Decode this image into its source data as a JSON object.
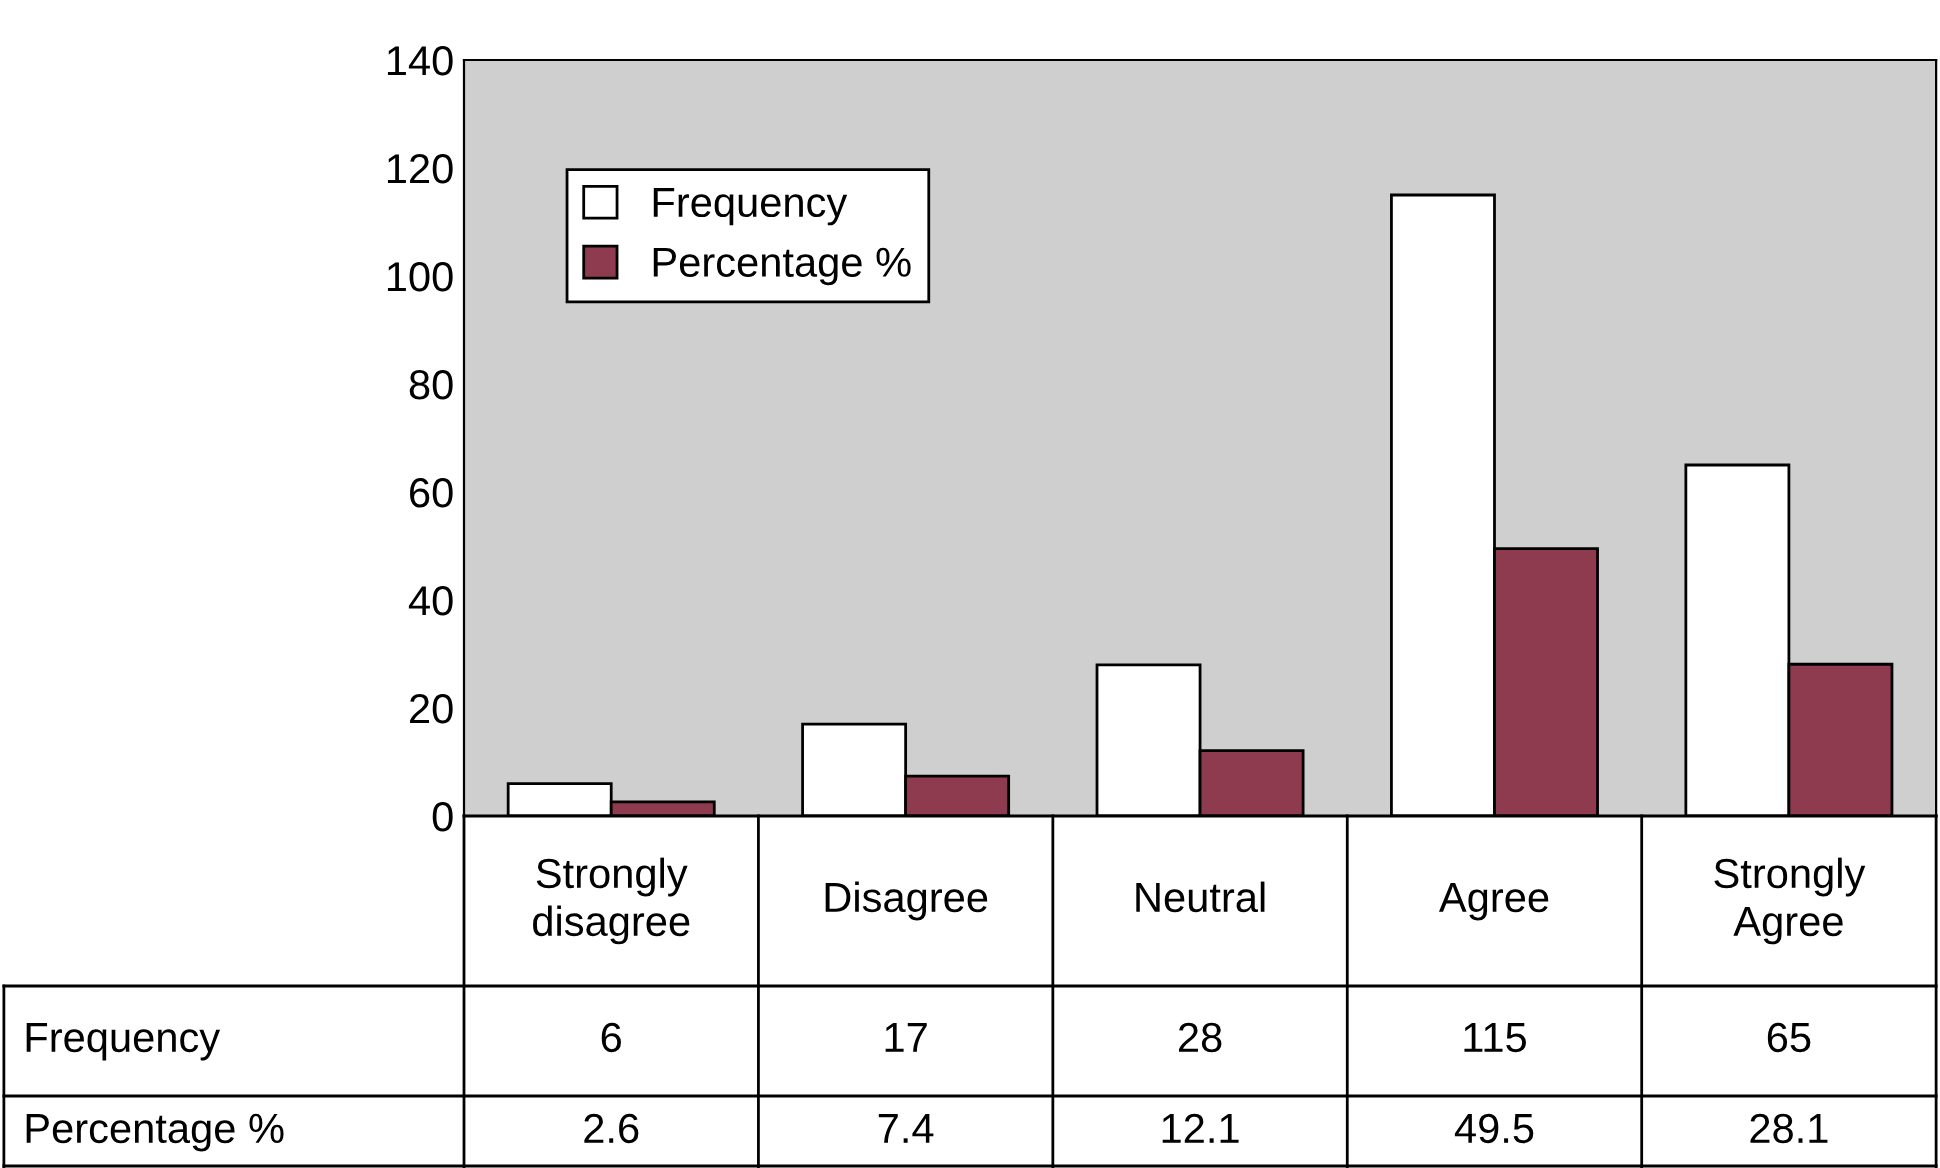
{
  "chart_data": {
    "type": "bar",
    "categories": [
      "Strongly\ndisagree",
      "Disagree",
      "Neutral",
      "Agree",
      "Strongly\nAgree"
    ],
    "series": [
      {
        "name": "Frequency",
        "color": "#ffffff",
        "values": [
          6,
          17,
          28,
          115,
          65
        ]
      },
      {
        "name": "Percentage %",
        "color": "#8e3a4f",
        "values": [
          2.6,
          7.4,
          12.1,
          49.5,
          28.1
        ]
      }
    ],
    "ylim": [
      0,
      140
    ],
    "yticks": [
      0,
      20,
      40,
      60,
      80,
      100,
      120,
      140
    ],
    "grid": false,
    "legend": "top left",
    "data_labels": true
  }
}
